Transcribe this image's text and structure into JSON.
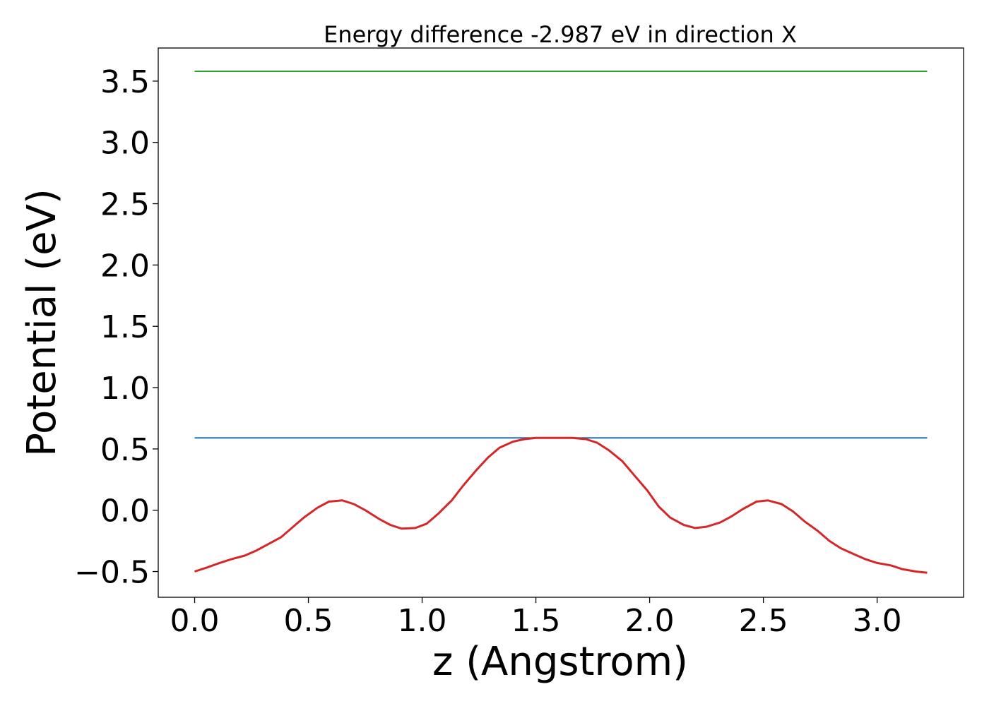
{
  "chart_data": {
    "type": "line",
    "title": "Energy difference -2.987 eV in direction X",
    "xlabel": "z (Angstrom)",
    "ylabel": "Potential (eV)",
    "xlim": [
      -0.16,
      3.38
    ],
    "ylim": [
      -0.71,
      3.77
    ],
    "xticks": [
      0.0,
      0.5,
      1.0,
      1.5,
      2.0,
      2.5,
      3.0
    ],
    "xtick_labels": [
      "0.0",
      "0.5",
      "1.0",
      "1.5",
      "2.0",
      "2.5",
      "3.0"
    ],
    "yticks": [
      -0.5,
      0.0,
      0.5,
      1.0,
      1.5,
      2.0,
      2.5,
      3.0,
      3.5
    ],
    "ytick_labels": [
      "−0.5",
      "0.0",
      "0.5",
      "1.0",
      "1.5",
      "2.0",
      "2.5",
      "3.0",
      "3.5"
    ],
    "grid": false,
    "series": [
      {
        "color": "#2ca02c",
        "x": [
          0.0,
          3.22
        ],
        "y": [
          3.58,
          3.58
        ]
      },
      {
        "color": "#1f77b4",
        "x": [
          0.0,
          3.22
        ],
        "y": [
          0.59,
          0.59
        ]
      },
      {
        "color": "#d62728",
        "x": [
          0.0,
          0.05,
          0.11,
          0.16,
          0.22,
          0.27,
          0.32,
          0.38,
          0.43,
          0.48,
          0.54,
          0.59,
          0.65,
          0.7,
          0.75,
          0.81,
          0.86,
          0.91,
          0.97,
          1.02,
          1.07,
          1.13,
          1.18,
          1.24,
          1.29,
          1.34,
          1.4,
          1.45,
          1.5,
          1.56,
          1.61,
          1.66,
          1.72,
          1.77,
          1.82,
          1.88,
          1.93,
          1.99,
          2.04,
          2.09,
          2.15,
          2.2,
          2.25,
          2.31,
          2.36,
          2.41,
          2.47,
          2.52,
          2.58,
          2.63,
          2.68,
          2.74,
          2.79,
          2.84,
          2.9,
          2.95,
          3.0,
          3.06,
          3.11,
          3.17,
          3.22
        ],
        "y": [
          -0.5,
          -0.47,
          -0.43,
          -0.4,
          -0.37,
          -0.33,
          -0.28,
          -0.22,
          -0.14,
          -0.06,
          0.02,
          0.07,
          0.08,
          0.05,
          0.0,
          -0.07,
          -0.12,
          -0.15,
          -0.145,
          -0.11,
          -0.03,
          0.08,
          0.2,
          0.33,
          0.43,
          0.51,
          0.56,
          0.58,
          0.59,
          0.59,
          0.59,
          0.59,
          0.58,
          0.55,
          0.49,
          0.4,
          0.29,
          0.16,
          0.03,
          -0.06,
          -0.12,
          -0.145,
          -0.135,
          -0.1,
          -0.05,
          0.01,
          0.07,
          0.08,
          0.05,
          -0.01,
          -0.09,
          -0.17,
          -0.25,
          -0.31,
          -0.36,
          -0.4,
          -0.43,
          -0.45,
          -0.48,
          -0.5,
          -0.51
        ]
      }
    ]
  }
}
